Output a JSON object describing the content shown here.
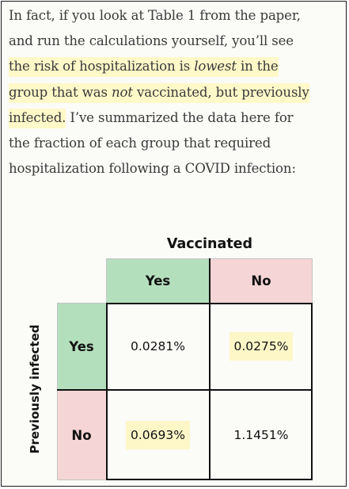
{
  "paragraph": {
    "l1": "In fact, if you look at Table 1 from the paper,",
    "l2": "and run the calculations yourself, you’ll see",
    "l3": "the risk of hospitalization is ",
    "l3_em": "lowest",
    "l3_end": " in the",
    "l4a": "group that was ",
    "l4_em": "not",
    "l4b": " vaccinated, but previously",
    "l5_hl": "infected.",
    "l5_rest": " I’ve summarized the data here for",
    "l6": "the fraction of each group that required",
    "l7": "hospitalization following a COVID infection:"
  },
  "table": {
    "column_title": "Vaccinated",
    "row_title": "Previously infected",
    "col_yes": "Yes",
    "col_no": "No",
    "row_yes": "Yes",
    "row_no": "No",
    "yes_yes": "0.0281%",
    "yes_no": "0.0275%",
    "no_yes": "0.0693%",
    "no_no": "1.1451%"
  },
  "colors": {
    "highlight": "#fff8c8",
    "yes_header": "#b4dfbd",
    "no_header": "#f5d5d5"
  }
}
